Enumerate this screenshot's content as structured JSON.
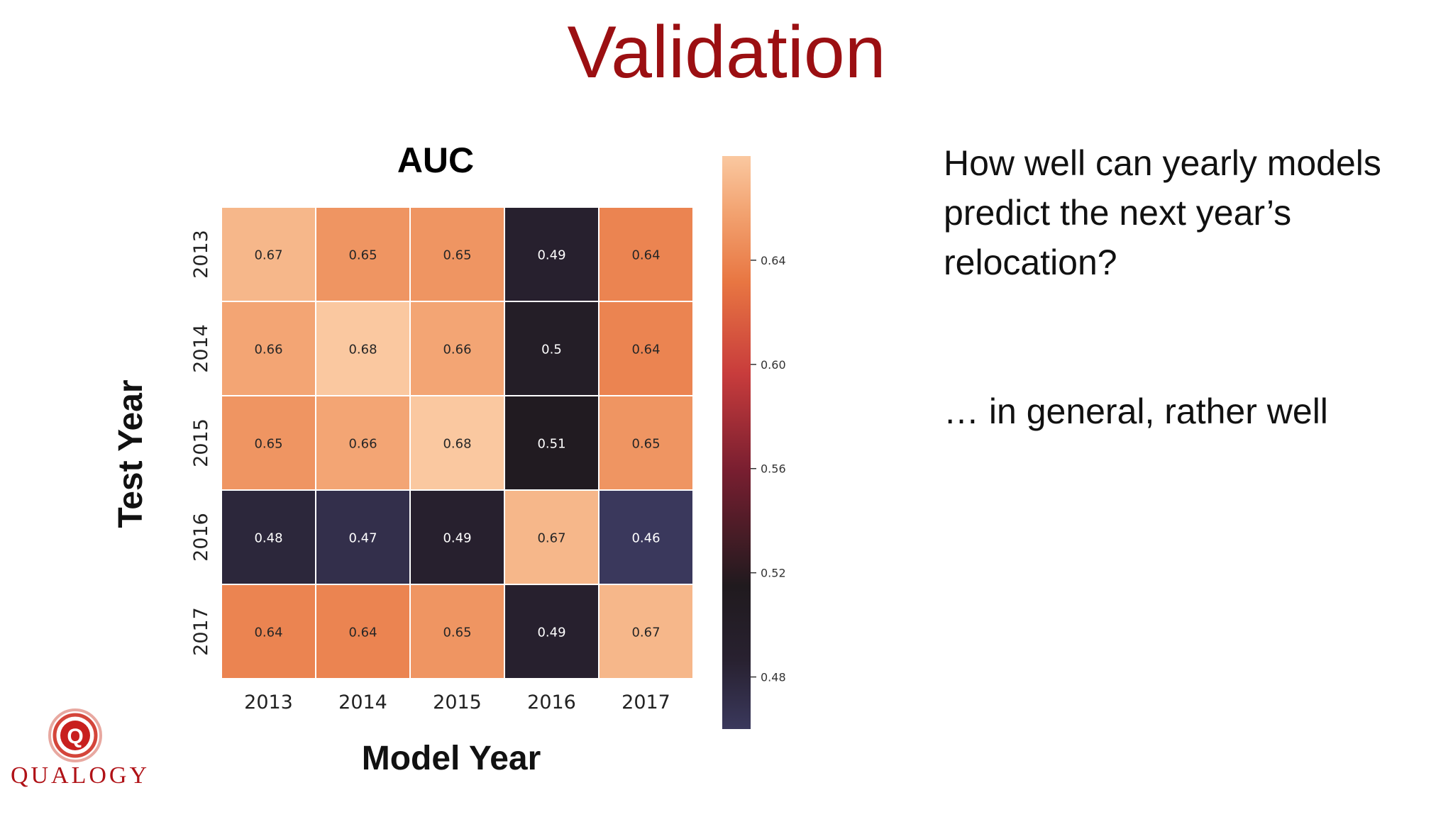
{
  "slide": {
    "title": "Validation",
    "question": "How well can yearly models predict the next year’s relocation?",
    "answer": "… in general, rather well",
    "logo_text": "QUALOGY",
    "logo_mark": "Q"
  },
  "chart_data": {
    "type": "heatmap",
    "title": "AUC",
    "xlabel": "Model Year",
    "ylabel": "Test Year",
    "x_categories": [
      "2013",
      "2014",
      "2015",
      "2016",
      "2017"
    ],
    "y_categories": [
      "2013",
      "2014",
      "2015",
      "2016",
      "2017"
    ],
    "values": [
      [
        0.67,
        0.65,
        0.65,
        0.49,
        0.64
      ],
      [
        0.66,
        0.68,
        0.66,
        0.5,
        0.64
      ],
      [
        0.65,
        0.66,
        0.68,
        0.51,
        0.65
      ],
      [
        0.48,
        0.47,
        0.49,
        0.67,
        0.46
      ],
      [
        0.64,
        0.64,
        0.65,
        0.49,
        0.67
      ]
    ],
    "cell_labels": [
      [
        "0.67",
        "0.65",
        "0.65",
        "0.49",
        "0.64"
      ],
      [
        "0.66",
        "0.68",
        "0.66",
        "0.5",
        "0.64"
      ],
      [
        "0.65",
        "0.66",
        "0.68",
        "0.51",
        "0.65"
      ],
      [
        "0.48",
        "0.47",
        "0.49",
        "0.67",
        "0.46"
      ],
      [
        "0.64",
        "0.64",
        "0.65",
        "0.49",
        "0.67"
      ]
    ],
    "colorbar": {
      "min": 0.46,
      "max": 0.68,
      "ticks": [
        "0.64",
        "0.60",
        "0.56",
        "0.52",
        "0.48"
      ]
    },
    "colormap": "rocket",
    "grid": false
  },
  "colors": {
    "title": "#9b0f12",
    "logo": "#b01217"
  }
}
